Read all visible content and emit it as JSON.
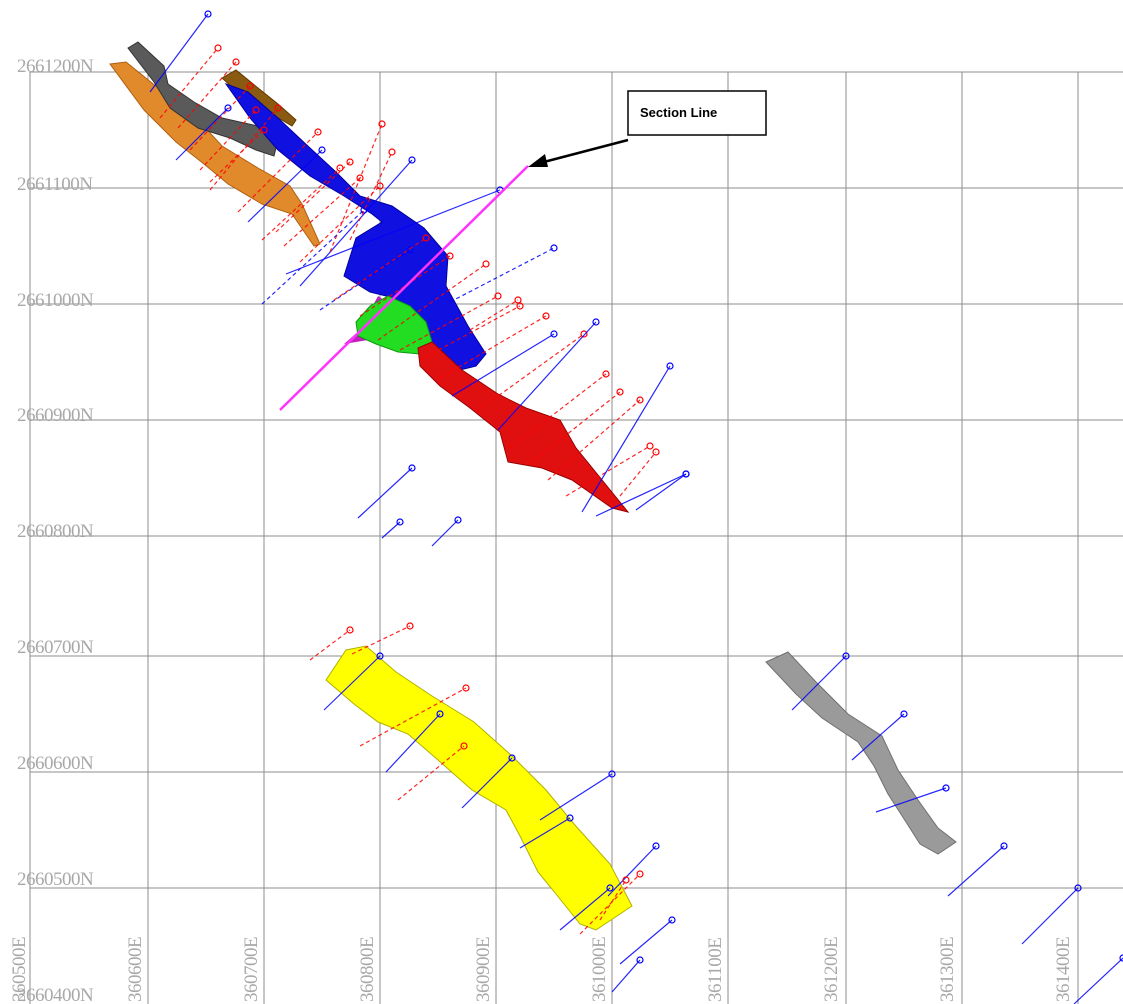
{
  "map": {
    "northing_labels": [
      "2661200N",
      "2661100N",
      "2661000N",
      "2660900N",
      "2660800N",
      "2660700N",
      "2660600N",
      "2660500N",
      "2660400N"
    ],
    "easting_labels": [
      "360500E",
      "360600E",
      "360700E",
      "360800E",
      "360900E",
      "361000E",
      "361100E",
      "361200E",
      "361300E",
      "361400E"
    ],
    "callout": {
      "label": "Section Line"
    },
    "colors": {
      "grid": "#8c8c8c",
      "label": "#a8a8a8",
      "section_line": "#ff33ff",
      "orange_body": "#e08a2c",
      "dark_grey_body": "#5a5a5a",
      "brown_body": "#8a5a10",
      "blue_body": "#1010e0",
      "green_body": "#22dd22",
      "red_body": "#e01010",
      "yellow_body": "#ffff00",
      "grey_body": "#9a9a9a",
      "drill_red": "#ff0000",
      "drill_blue": "#0000ff"
    }
  }
}
